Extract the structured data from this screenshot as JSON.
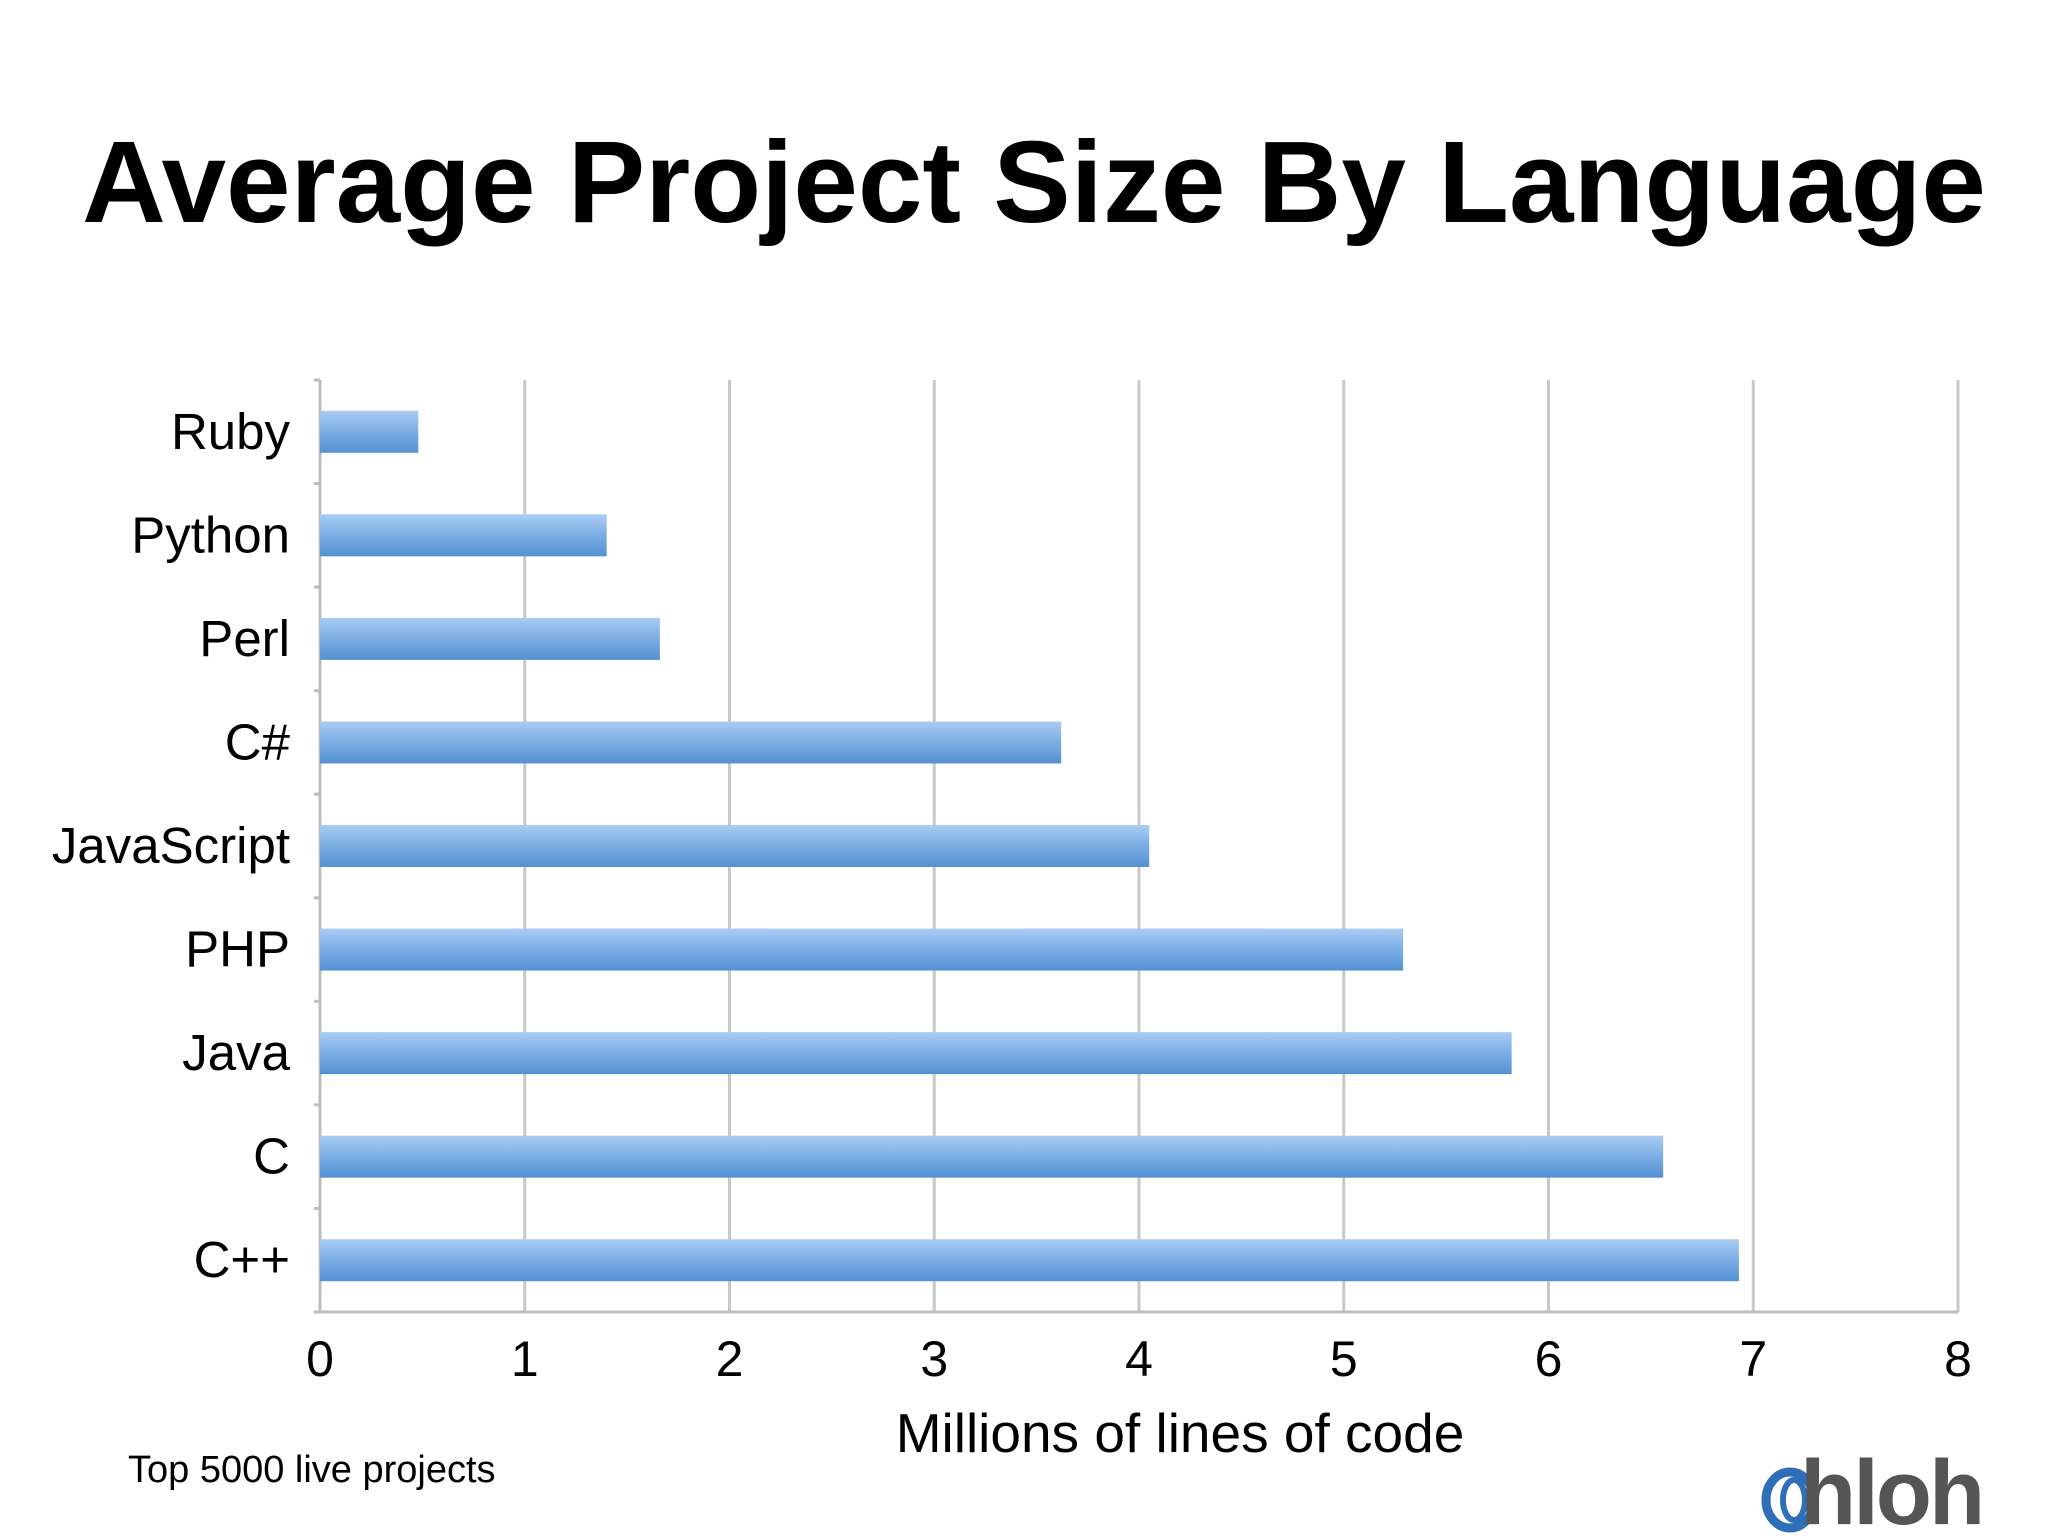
{
  "footnote": "Top 5000 live projects",
  "logo": {
    "text": "hloh",
    "accent_color": "#2e6fb8",
    "text_color": "#555555"
  },
  "colors": {
    "bar_light": "#a9cdf4",
    "bar_mid": "#7fb0e6",
    "bar_dark": "#5490d2"
  },
  "chart_data": {
    "type": "bar",
    "orientation": "horizontal",
    "title": "Average Project Size By Language",
    "xlabel": "Millions of lines of code",
    "ylabel": "",
    "categories": [
      "Ruby",
      "Python",
      "Perl",
      "C#",
      "JavaScript",
      "PHP",
      "Java",
      "C",
      "C++"
    ],
    "values": [
      0.48,
      1.4,
      1.66,
      3.62,
      4.05,
      5.29,
      5.82,
      6.56,
      6.93
    ],
    "xlim": [
      0,
      8
    ],
    "xticks": [
      "0",
      "1",
      "2",
      "3",
      "4",
      "5",
      "6",
      "7",
      "8"
    ],
    "grid": true,
    "legend": "none"
  }
}
